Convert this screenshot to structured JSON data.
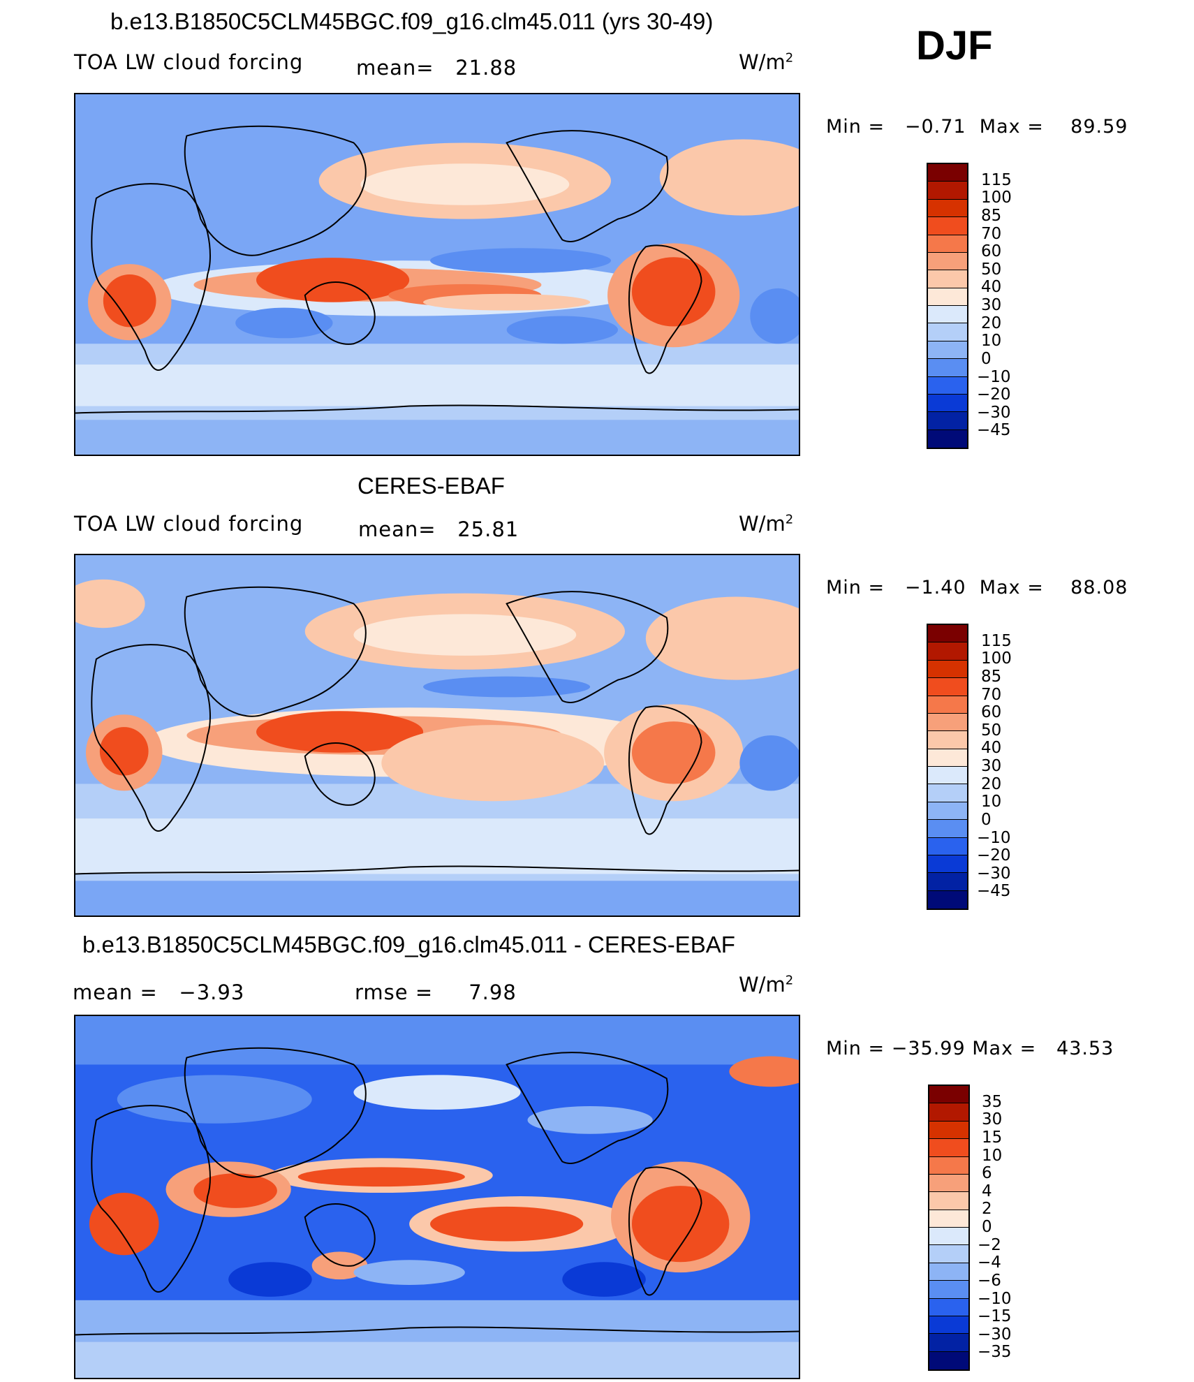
{
  "season": "DJF",
  "units": "W/m",
  "units_exp": "2",
  "panels": [
    {
      "title": "b.e13.B1850C5CLM45BGC.f09_g16.clm45.011 (yrs 30-49)",
      "variable": "TOA LW cloud forcing",
      "stat1_label": "mean=",
      "stat1_value": "21.88",
      "min_label": "Min  =",
      "min_value": "−0.71",
      "max_label": "Max  =",
      "max_value": "89.59",
      "levels": [
        "115",
        "100",
        "85",
        "70",
        "60",
        "50",
        "40",
        "30",
        "20",
        "10",
        "0",
        "−10",
        "−20",
        "−30",
        "−45"
      ]
    },
    {
      "title": "CERES-EBAF",
      "variable": "TOA LW cloud forcing",
      "stat1_label": "mean=",
      "stat1_value": "25.81",
      "min_label": "Min  =",
      "min_value": "−1.40",
      "max_label": "Max  =",
      "max_value": "88.08",
      "levels": [
        "115",
        "100",
        "85",
        "70",
        "60",
        "50",
        "40",
        "30",
        "20",
        "10",
        "0",
        "−10",
        "−20",
        "−30",
        "−45"
      ]
    },
    {
      "title": "b.e13.B1850C5CLM45BGC.f09_g16.clm45.011 - CERES-EBAF",
      "stat1_label": "mean  =",
      "stat1_value": "−3.93",
      "stat2_label": "rmse  =",
      "stat2_value": "7.98",
      "min_label": "Min  =",
      "min_value": "−35.99",
      "max_label": "Max  =",
      "max_value": "43.53",
      "levels": [
        "35",
        "30",
        "15",
        "10",
        "6",
        "4",
        "2",
        "0",
        "−2",
        "−4",
        "−6",
        "−10",
        "−15",
        "−30",
        "−35"
      ]
    }
  ],
  "colors": {
    "scale": [
      "#7a0000",
      "#b21800",
      "#d63200",
      "#f04d1e",
      "#f5784a",
      "#f7a07a",
      "#fbc8aa",
      "#fde8d8",
      "#dbe9fb",
      "#b4cff8",
      "#8db4f5",
      "#5a8ef2",
      "#2a62ee",
      "#0a3ad6",
      "#0222a4",
      "#000a78"
    ]
  }
}
